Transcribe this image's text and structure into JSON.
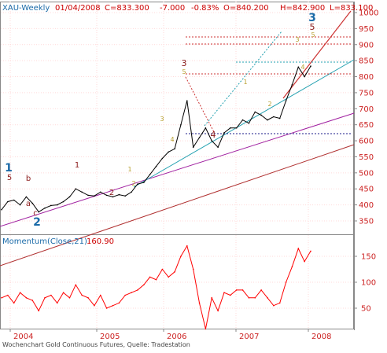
{
  "header": {
    "symbol": "XAU-Weekly",
    "date": "01/04/2008",
    "close": "C=833.300",
    "change": "-7.000",
    "change_pct": "-0.83%",
    "open": "O=840.200",
    "high": "H=842.900",
    "low": "L=833.100"
  },
  "momentum_label": "Momentum(Close,21)",
  "momentum_value": "160.90",
  "footer": "Wochenchart Gold Continuous Futures, Quelle: Tradestation",
  "colors": {
    "price": "#000000",
    "momentum": "#ff0000",
    "header_blue": "#1a6aa8",
    "header_red": "#cc0000",
    "axis_text": "#cc2222",
    "grid": "#ffd9d9",
    "trend_red": "#b03030",
    "trend_purple": "#a020a0",
    "trend_teal": "#22a0b0"
  },
  "chart_data": [
    {
      "type": "line",
      "name": "price",
      "title": "XAU-Weekly",
      "x_ticks": [
        "2004",
        "2005",
        "2006",
        "2007",
        "2008"
      ],
      "y_ticks": [
        350,
        400,
        450,
        500,
        550,
        600,
        650,
        700,
        750,
        800,
        850,
        900,
        950,
        1000
      ],
      "ylim": [
        320,
        1010
      ],
      "x": [
        "2003-10",
        "2003-12",
        "2004-01",
        "2004-02",
        "2004-03",
        "2004-04",
        "2004-05",
        "2004-06",
        "2004-07",
        "2004-08",
        "2004-09",
        "2004-10",
        "2004-11",
        "2004-12",
        "2005-01",
        "2005-02",
        "2005-03",
        "2005-04",
        "2005-05",
        "2005-06",
        "2005-07",
        "2005-08",
        "2005-09",
        "2005-10",
        "2005-11",
        "2005-12",
        "2006-01",
        "2006-02",
        "2006-03",
        "2006-04",
        "2006-05",
        "2006-06",
        "2006-07",
        "2006-08",
        "2006-09",
        "2006-10",
        "2006-11",
        "2006-12",
        "2007-01",
        "2007-02",
        "2007-03",
        "2007-04",
        "2007-05",
        "2007-06",
        "2007-07",
        "2007-08",
        "2007-09",
        "2007-10",
        "2007-11",
        "2007-12",
        "2008-01"
      ],
      "values": [
        385,
        410,
        415,
        400,
        425,
        405,
        378,
        390,
        398,
        400,
        410,
        425,
        450,
        440,
        430,
        428,
        440,
        430,
        425,
        432,
        428,
        440,
        465,
        470,
        495,
        520,
        545,
        565,
        575,
        650,
        725,
        580,
        610,
        640,
        600,
        580,
        625,
        640,
        640,
        665,
        655,
        690,
        680,
        665,
        675,
        670,
        725,
        775,
        830,
        800,
        833
      ]
    },
    {
      "type": "line",
      "name": "momentum",
      "title": "Momentum(Close,21)",
      "y_ticks": [
        50,
        100,
        150
      ],
      "ylim": [
        0,
        190
      ],
      "values": [
        70,
        75,
        60,
        80,
        70,
        65,
        45,
        70,
        75,
        60,
        80,
        70,
        95,
        75,
        70,
        55,
        75,
        50,
        55,
        60,
        75,
        80,
        85,
        95,
        110,
        105,
        125,
        110,
        120,
        150,
        170,
        125,
        60,
        10,
        70,
        45,
        80,
        75,
        85,
        85,
        70,
        70,
        85,
        70,
        55,
        60,
        100,
        130,
        165,
        140,
        160
      ]
    }
  ],
  "wave_labels": [
    {
      "text": "1",
      "color": "#1a6aa8",
      "size": "large"
    },
    {
      "text": "5",
      "color": "#8b1a1a",
      "size": "small"
    },
    {
      "text": "b",
      "color": "#8b1a1a",
      "size": "small"
    },
    {
      "text": "a",
      "color": "#8b1a1a",
      "size": "small"
    },
    {
      "text": "c",
      "color": "#8b1a1a",
      "size": "small"
    },
    {
      "text": "2",
      "color": "#1a6aa8",
      "size": "large"
    },
    {
      "text": "1",
      "color": "#8b1a1a",
      "size": "small"
    },
    {
      "text": "2",
      "color": "#8b1a1a",
      "size": "small"
    },
    {
      "text": "1",
      "color": "#b8a030",
      "size": "tiny"
    },
    {
      "text": "2",
      "color": "#b8a030",
      "size": "tiny"
    },
    {
      "text": "3",
      "color": "#b8a030",
      "size": "tiny"
    },
    {
      "text": "4",
      "color": "#b8a030",
      "size": "tiny"
    },
    {
      "text": "5",
      "color": "#b8a030",
      "size": "tiny"
    },
    {
      "text": "3",
      "color": "#8b1a1a",
      "size": "medium"
    },
    {
      "text": "4",
      "color": "#8b1a1a",
      "size": "medium"
    },
    {
      "text": "1",
      "color": "#b8a030",
      "size": "tiny"
    },
    {
      "text": "2",
      "color": "#b8a030",
      "size": "tiny"
    },
    {
      "text": "3",
      "color": "#b8a030",
      "size": "tiny"
    },
    {
      "text": "4",
      "color": "#b8a030",
      "size": "tiny"
    },
    {
      "text": "3",
      "color": "#1a6aa8",
      "size": "large"
    },
    {
      "text": "5",
      "color": "#8b1a1a",
      "size": "medium"
    },
    {
      "text": "5",
      "color": "#b8a030",
      "size": "tiny"
    }
  ]
}
